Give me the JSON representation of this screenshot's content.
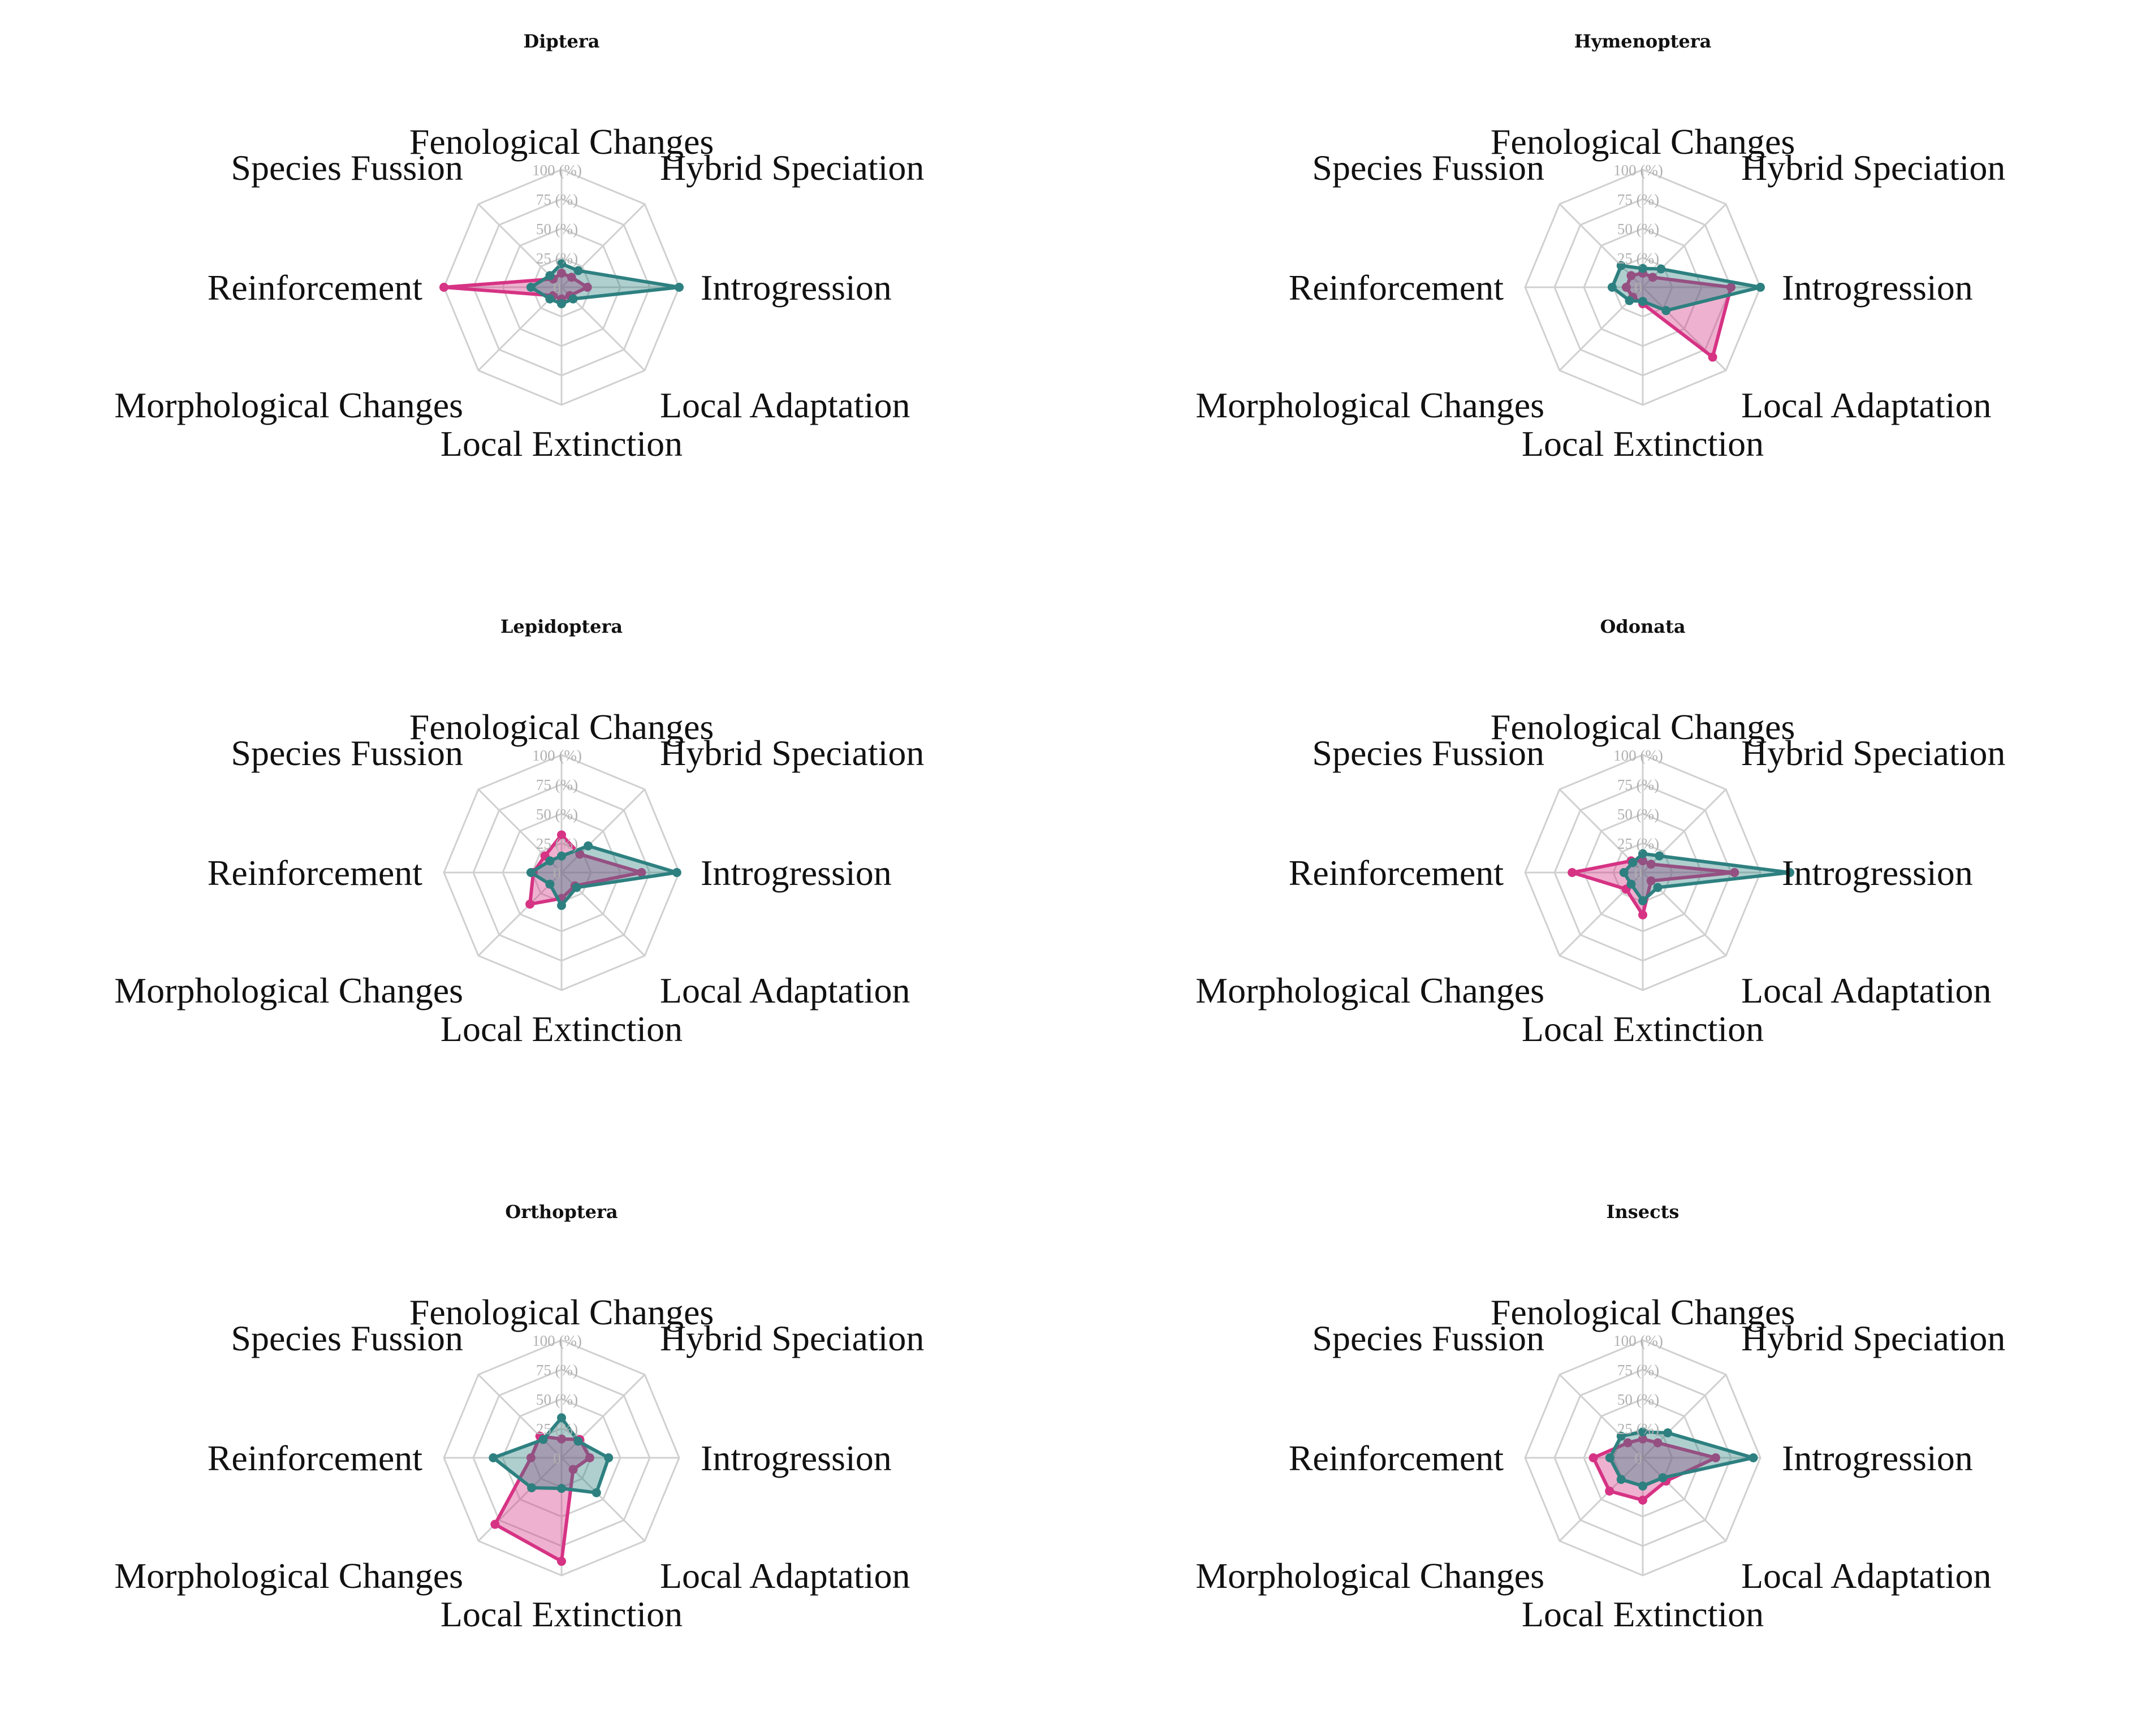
{
  "chart_data": [
    {
      "type": "radar",
      "title": "Diptera",
      "axes": [
        "Fenological Changes",
        "Hybrid Speciation",
        "Introgression",
        "Local Adaptation",
        "Local Extinction",
        "Morphological Changes",
        "Reinforcement",
        "Species Fussion"
      ],
      "ticks": [
        "0",
        "25 (%)",
        "50 (%)",
        "75 (%)",
        "100 (%)"
      ],
      "rlim": [
        0,
        100
      ],
      "series": [
        {
          "color": "#d63384",
          "values": [
            12,
            12,
            22,
            10,
            10,
            10,
            100,
            10
          ]
        },
        {
          "color": "#2e8080",
          "values": [
            20,
            20,
            100,
            14,
            14,
            14,
            26,
            14
          ]
        }
      ]
    },
    {
      "type": "radar",
      "title": "Hymenoptera",
      "axes": [
        "Fenological Changes",
        "Hybrid Speciation",
        "Introgression",
        "Local Adaptation",
        "Local Extinction",
        "Morphological Changes",
        "Reinforcement",
        "Species Fussion"
      ],
      "ticks": [
        "0",
        "25 (%)",
        "50 (%)",
        "75 (%)",
        "100 (%)"
      ],
      "rlim": [
        0,
        100
      ],
      "series": [
        {
          "color": "#d63384",
          "values": [
            12,
            12,
            75,
            84,
            14,
            12,
            14,
            14
          ]
        },
        {
          "color": "#2e8080",
          "values": [
            16,
            22,
            100,
            28,
            12,
            16,
            26,
            26
          ]
        }
      ]
    },
    {
      "type": "radar",
      "title": "Lepidoptera",
      "axes": [
        "Fenological Changes",
        "Hybrid Speciation",
        "Introgression",
        "Local Adaptation",
        "Local Extinction",
        "Morphological Changes",
        "Reinforcement",
        "Species Fussion"
      ],
      "ticks": [
        "0",
        "25 (%)",
        "50 (%)",
        "75 (%)",
        "100 (%)"
      ],
      "rlim": [
        0,
        100
      ],
      "series": [
        {
          "color": "#d63384",
          "values": [
            32,
            22,
            68,
            16,
            22,
            38,
            24,
            20
          ]
        },
        {
          "color": "#2e8080",
          "values": [
            14,
            32,
            98,
            18,
            28,
            14,
            26,
            14
          ]
        }
      ]
    },
    {
      "type": "radar",
      "title": "Odonata",
      "axes": [
        "Fenological Changes",
        "Hybrid Speciation",
        "Introgression",
        "Local Adaptation",
        "Local Extinction",
        "Morphological Changes",
        "Reinforcement",
        "Species Fussion"
      ],
      "ticks": [
        "0",
        "25 (%)",
        "50 (%)",
        "75 (%)",
        "100 (%)"
      ],
      "rlim": [
        0,
        100
      ],
      "series": [
        {
          "color": "#d63384",
          "values": [
            10,
            10,
            78,
            10,
            36,
            20,
            60,
            14
          ]
        },
        {
          "color": "#2e8080",
          "values": [
            16,
            20,
            125,
            18,
            24,
            14,
            16,
            12
          ]
        }
      ]
    },
    {
      "type": "radar",
      "title": "Orthoptera",
      "axes": [
        "Fenological Changes",
        "Hybrid Speciation",
        "Introgression",
        "Local Adaptation",
        "Local Extinction",
        "Morphological Changes",
        "Reinforcement",
        "Species Fussion"
      ],
      "ticks": [
        "0",
        "25 (%)",
        "50 (%)",
        "75 (%)",
        "100 (%)"
      ],
      "rlim": [
        0,
        100
      ],
      "series": [
        {
          "color": "#d63384",
          "values": [
            16,
            22,
            24,
            14,
            88,
            80,
            26,
            26
          ]
        },
        {
          "color": "#2e8080",
          "values": [
            34,
            20,
            40,
            42,
            26,
            36,
            58,
            22
          ]
        }
      ]
    },
    {
      "type": "radar",
      "title": "Insects",
      "axes": [
        "Fenological Changes",
        "Hybrid Speciation",
        "Introgression",
        "Local Adaptation",
        "Local Extinction",
        "Morphological Changes",
        "Reinforcement",
        "Species Fussion"
      ],
      "ticks": [
        "0",
        "25 (%)",
        "50 (%)",
        "75 (%)",
        "100 (%)"
      ],
      "rlim": [
        0,
        100
      ],
      "series": [
        {
          "color": "#d63384",
          "values": [
            16,
            18,
            62,
            28,
            36,
            40,
            42,
            18
          ]
        },
        {
          "color": "#2e8080",
          "values": [
            22,
            30,
            94,
            24,
            24,
            26,
            28,
            26
          ]
        }
      ]
    }
  ]
}
